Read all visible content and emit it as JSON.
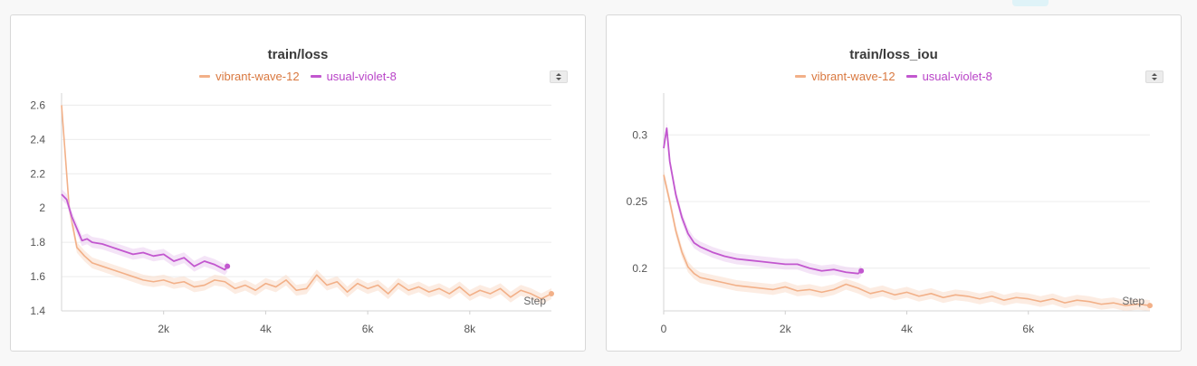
{
  "colors": {
    "vibrant": "#f2b088",
    "vibrant_text": "#d9783f",
    "vibrant_band": "#f9dccb",
    "violet": "#c257cf",
    "violet_text": "#b944c8",
    "violet_band": "#ebcdf0"
  },
  "icons": {
    "sort": "sort-arrows-icon"
  },
  "chart_data": [
    {
      "type": "line",
      "title": "train/loss",
      "xlabel": "Step",
      "ylabel": "",
      "xlim": [
        0,
        9600
      ],
      "ylim": [
        1.4,
        2.66
      ],
      "xticks": [
        2000,
        4000,
        6000,
        8000
      ],
      "xtick_labels": [
        "2k",
        "4k",
        "6k",
        "8k"
      ],
      "yticks": [
        1.4,
        1.6,
        1.8,
        2.0,
        2.2,
        2.4,
        2.6
      ],
      "ytick_labels": [
        "1.4",
        "1.6",
        "1.8",
        "2",
        "2.2",
        "2.4",
        "2.6"
      ],
      "grid": true,
      "legend": "top-center",
      "series": [
        {
          "name": "vibrant-wave-12",
          "x": [
            0,
            150,
            300,
            450,
            600,
            800,
            1000,
            1200,
            1400,
            1600,
            1800,
            2000,
            2200,
            2400,
            2600,
            2800,
            3000,
            3200,
            3400,
            3600,
            3800,
            4000,
            4200,
            4400,
            4600,
            4800,
            5000,
            5200,
            5400,
            5600,
            5800,
            6000,
            6200,
            6400,
            6600,
            6800,
            7000,
            7200,
            7400,
            7600,
            7800,
            8000,
            8200,
            8400,
            8600,
            8800,
            9000,
            9200,
            9400,
            9600
          ],
          "y": [
            2.6,
            2.0,
            1.77,
            1.72,
            1.68,
            1.66,
            1.64,
            1.62,
            1.6,
            1.58,
            1.57,
            1.58,
            1.56,
            1.57,
            1.54,
            1.55,
            1.58,
            1.57,
            1.53,
            1.55,
            1.52,
            1.56,
            1.54,
            1.58,
            1.52,
            1.53,
            1.61,
            1.55,
            1.57,
            1.51,
            1.56,
            1.53,
            1.55,
            1.5,
            1.56,
            1.52,
            1.54,
            1.51,
            1.53,
            1.5,
            1.54,
            1.49,
            1.52,
            1.5,
            1.53,
            1.48,
            1.52,
            1.5,
            1.47,
            1.5
          ]
        },
        {
          "name": "usual-violet-8",
          "x": [
            0,
            100,
            200,
            300,
            400,
            500,
            600,
            800,
            1000,
            1200,
            1400,
            1600,
            1800,
            2000,
            2200,
            2400,
            2600,
            2800,
            3000,
            3200,
            3250
          ],
          "y": [
            2.08,
            2.05,
            1.95,
            1.88,
            1.81,
            1.82,
            1.8,
            1.79,
            1.77,
            1.75,
            1.73,
            1.74,
            1.72,
            1.73,
            1.69,
            1.71,
            1.66,
            1.69,
            1.67,
            1.64,
            1.66
          ]
        }
      ]
    },
    {
      "type": "line",
      "title": "train/loss_iou",
      "xlabel": "Step",
      "ylabel": "",
      "xlim": [
        0,
        8000
      ],
      "ylim": [
        0.168,
        0.33
      ],
      "xticks": [
        0,
        2000,
        4000,
        6000
      ],
      "xtick_labels": [
        "0",
        "2k",
        "4k",
        "6k"
      ],
      "yticks": [
        0.2,
        0.25,
        0.3
      ],
      "ytick_labels": [
        "0.2",
        "0.25",
        "0.3"
      ],
      "grid": true,
      "legend": "top-center",
      "series": [
        {
          "name": "vibrant-wave-12",
          "x": [
            0,
            100,
            200,
            300,
            400,
            500,
            600,
            800,
            1000,
            1200,
            1400,
            1600,
            1800,
            2000,
            2200,
            2400,
            2600,
            2800,
            3000,
            3200,
            3400,
            3600,
            3800,
            4000,
            4200,
            4400,
            4600,
            4800,
            5000,
            5200,
            5400,
            5600,
            5800,
            6000,
            6200,
            6400,
            6600,
            6800,
            7000,
            7200,
            7400,
            7600,
            7800,
            8000
          ],
          "y": [
            0.27,
            0.25,
            0.228,
            0.212,
            0.201,
            0.196,
            0.193,
            0.191,
            0.189,
            0.187,
            0.186,
            0.185,
            0.184,
            0.186,
            0.183,
            0.184,
            0.182,
            0.184,
            0.188,
            0.185,
            0.181,
            0.183,
            0.18,
            0.182,
            0.179,
            0.181,
            0.178,
            0.18,
            0.179,
            0.177,
            0.179,
            0.176,
            0.178,
            0.177,
            0.175,
            0.177,
            0.174,
            0.176,
            0.175,
            0.173,
            0.174,
            0.172,
            0.173,
            0.172
          ]
        },
        {
          "name": "usual-violet-8",
          "x": [
            0,
            50,
            100,
            200,
            300,
            400,
            500,
            600,
            800,
            1000,
            1200,
            1400,
            1600,
            1800,
            2000,
            2200,
            2400,
            2600,
            2800,
            3000,
            3200,
            3250
          ],
          "y": [
            0.29,
            0.305,
            0.28,
            0.255,
            0.238,
            0.226,
            0.219,
            0.216,
            0.212,
            0.209,
            0.207,
            0.206,
            0.205,
            0.204,
            0.203,
            0.203,
            0.2,
            0.198,
            0.199,
            0.197,
            0.196,
            0.198
          ]
        }
      ]
    }
  ]
}
